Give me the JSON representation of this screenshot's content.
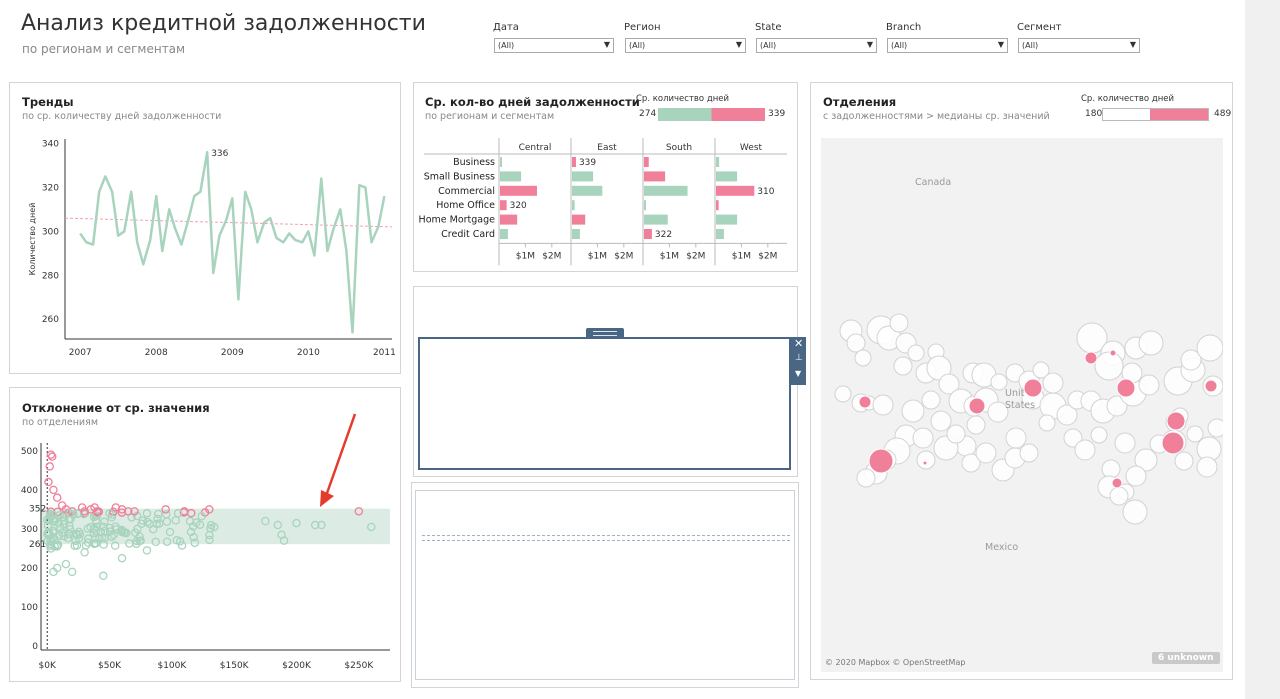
{
  "header": {
    "title": "Анализ кредитной задолженности",
    "subtitle": "по регионам и сегментам"
  },
  "filters": [
    {
      "label": "Дата",
      "value": "(All)"
    },
    {
      "label": "Регион",
      "value": "(All)"
    },
    {
      "label": "State",
      "value": "(All)"
    },
    {
      "label": "Branch",
      "value": "(All)"
    },
    {
      "label": "Сегмент",
      "value": "(All)"
    }
  ],
  "trends": {
    "title": "Тренды",
    "subtitle": "по ср. количеству дней задолженности",
    "ylabel": "Количество дней",
    "peak_label": "336"
  },
  "deviation": {
    "title": "Отклонение от ср. значения",
    "subtitle": "по отделениям",
    "upper_label": "352",
    "lower_label": "261"
  },
  "avg_days": {
    "title": "Ср. кол-во дней задолженности",
    "subtitle": "по регионам и сегментам",
    "legend_title": "Ср. количество дней",
    "legend_min": "274",
    "legend_max": "339"
  },
  "branches": {
    "title": "Отделения",
    "subtitle": "с задолженностями > медианы ср. значений",
    "legend_title": "Ср. количество дней",
    "legend_min": "180",
    "legend_max": "489",
    "map_labels": {
      "canada": "Canada",
      "us": "Unit\nStates",
      "mexico": "Mexico"
    },
    "attribution": "© 2020 Mapbox © OpenStreetMap",
    "unknown_badge": "6 unknown"
  },
  "colors": {
    "green": "#a8d4bd",
    "pink": "#f07f9a",
    "band": "#dcece4",
    "navy": "#4a6685"
  },
  "chart_data": [
    {
      "type": "line",
      "title": "Тренды",
      "ylabel": "Количество дней",
      "xlabel": "",
      "x_ticks": [
        "2007",
        "2008",
        "2009",
        "2010",
        "2011"
      ],
      "y_ticks": [
        260,
        280,
        300,
        320,
        340
      ],
      "ylim": [
        251,
        342
      ],
      "x_range": [
        2006.8,
        2011.1
      ],
      "series": [
        {
          "x": [
            2007.0,
            2007.08,
            2007.17,
            2007.25,
            2007.33,
            2007.42,
            2007.5,
            2007.58,
            2007.67,
            2007.75,
            2007.83,
            2007.92,
            2008.0,
            2008.08,
            2008.17,
            2008.25,
            2008.33,
            2008.42,
            2008.5,
            2008.58,
            2008.67,
            2008.75,
            2008.83,
            2008.92,
            2009.0,
            2009.08,
            2009.17,
            2009.25,
            2009.33,
            2009.42,
            2009.5,
            2009.58,
            2009.67,
            2009.75,
            2009.83,
            2009.92,
            2010.0,
            2010.08,
            2010.17,
            2010.25,
            2010.33,
            2010.42,
            2010.5,
            2010.58,
            2010.67,
            2010.75,
            2010.83,
            2010.92,
            2011.0
          ],
          "values": [
            299,
            295,
            294,
            318,
            325,
            318,
            298,
            300,
            318,
            295,
            285,
            296,
            316,
            291,
            310,
            301,
            294,
            305,
            316,
            318,
            336,
            281,
            298,
            305,
            315,
            269,
            318,
            310,
            295,
            304,
            306,
            297,
            295,
            299,
            296,
            295,
            300,
            289,
            324,
            291,
            301,
            310,
            291,
            254,
            321,
            320,
            295,
            302,
            316
          ]
        }
      ],
      "trend": [
        306,
        302
      ]
    },
    {
      "type": "scatter",
      "title": "Отклонение от ср. значения",
      "x_ticks": [
        "$0K",
        "$50K",
        "$100K",
        "$150K",
        "$200K",
        "$250K"
      ],
      "y_ticks": [
        0,
        100,
        200,
        300,
        400,
        500
      ],
      "xlim": [
        -5,
        275
      ],
      "ylim": [
        -10,
        520
      ],
      "band": [
        261,
        352
      ]
    },
    {
      "type": "bar",
      "title": "Ср. кол-во дней задолженности",
      "categories": [
        "Business",
        "Small Business",
        "Commercial",
        "Home Office",
        "Home Mortgage",
        "Credit Card"
      ],
      "regions": [
        "Central",
        "East",
        "South",
        "West"
      ],
      "x_ticks": [
        "$1M",
        "$2M"
      ],
      "xlim": [
        0,
        2.5
      ],
      "values": [
        [
          0.05,
          0.15,
          0.18,
          0.12
        ],
        [
          0.8,
          0.8,
          0.8,
          0.8
        ],
        [
          1.4,
          1.15,
          1.65,
          1.45
        ],
        [
          0.25,
          0.1,
          0.05,
          0.1
        ],
        [
          0.65,
          0.5,
          0.9,
          0.8
        ],
        [
          0.3,
          0.3,
          0.3,
          0.3
        ]
      ],
      "days": [
        [
          292,
          339,
          325,
          296
        ],
        [
          298,
          296,
          318,
          297
        ],
        [
          325,
          301,
          296,
          310
        ],
        [
          320,
          294,
          296,
          325
        ],
        [
          326,
          326,
          298,
          297
        ],
        [
          298,
          298,
          322,
          297
        ]
      ],
      "data_labels": [
        {
          "row": 0,
          "col": 1,
          "text": "339"
        },
        {
          "row": 2,
          "col": 3,
          "text": "310"
        },
        {
          "row": 3,
          "col": 0,
          "text": "320"
        },
        {
          "row": 5,
          "col": 2,
          "text": "322"
        }
      ]
    }
  ]
}
